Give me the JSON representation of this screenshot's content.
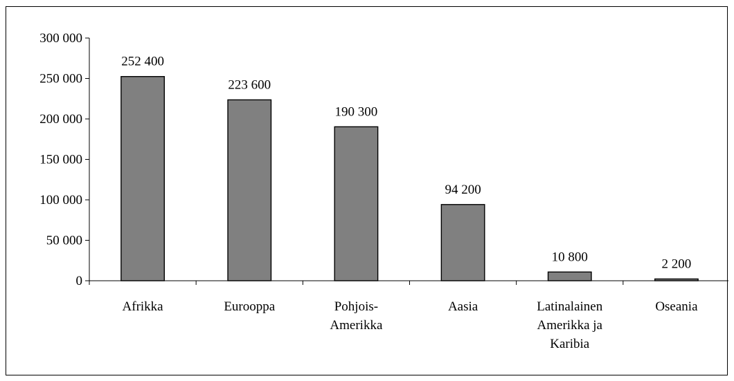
{
  "chart_data": {
    "type": "bar",
    "categories": [
      [
        "Afrikka"
      ],
      [
        "Eurooppa"
      ],
      [
        "Pohjois-",
        "Amerikka"
      ],
      [
        "Aasia"
      ],
      [
        "Latinalainen",
        "Amerikka ja",
        "Karibia"
      ],
      [
        "Oseania"
      ]
    ],
    "values": [
      252400,
      223600,
      190300,
      94200,
      10800,
      2200
    ],
    "data_labels": [
      "252 400",
      "223 600",
      "190 300",
      "94 200",
      "10 800",
      "2 200"
    ],
    "y_ticks": [
      0,
      50000,
      100000,
      150000,
      200000,
      250000,
      300000
    ],
    "y_tick_labels": [
      "0",
      "50 000",
      "100 000",
      "150 000",
      "200 000",
      "250 000",
      "300 000"
    ],
    "ylim": [
      0,
      300000
    ],
    "title": "",
    "xlabel": "",
    "ylabel": "",
    "grid": false,
    "legend": "none",
    "colors": {
      "bar_fill": "#808080",
      "bar_stroke": "#000000",
      "axis": "#000000",
      "background": "#ffffff"
    }
  }
}
